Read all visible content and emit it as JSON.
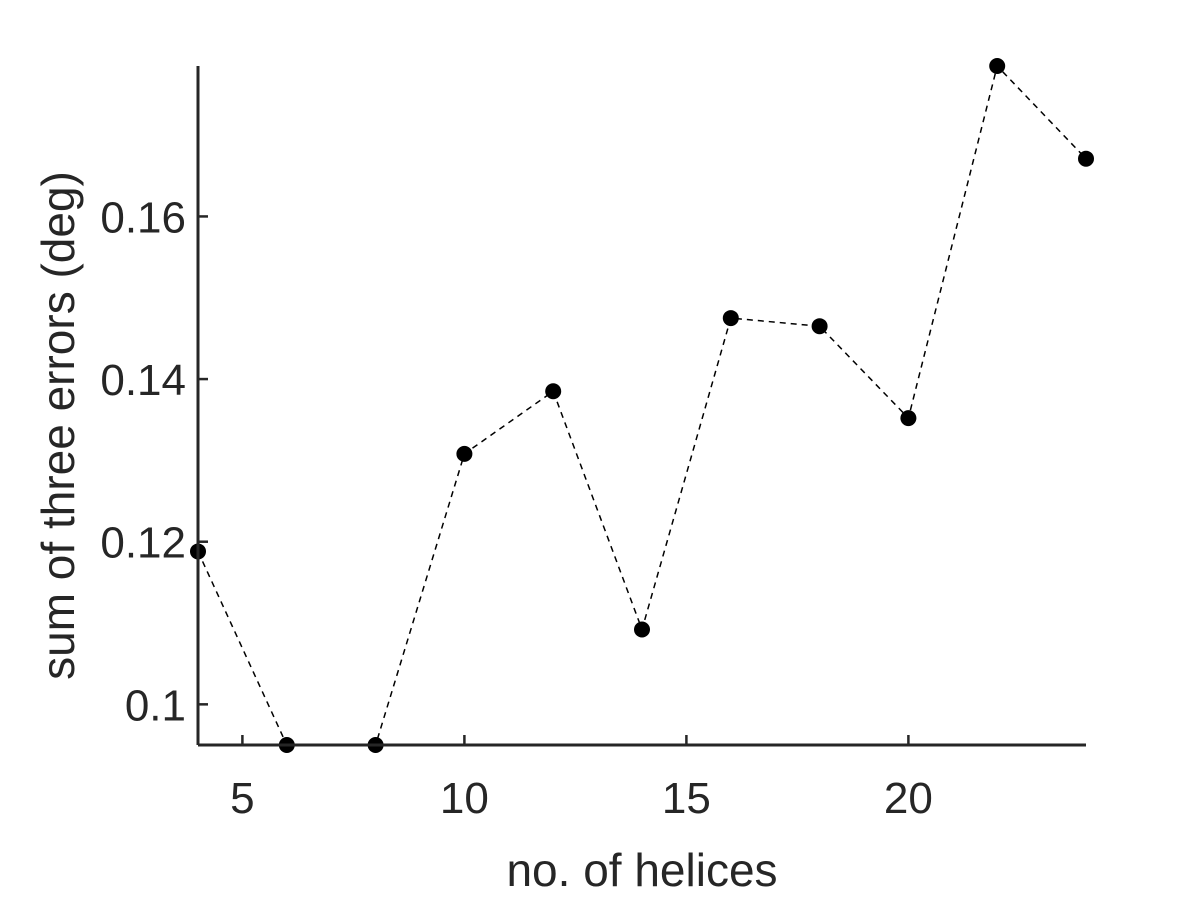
{
  "chart_data": {
    "type": "line",
    "title": "",
    "xlabel": "no. of helices",
    "ylabel": "sum of three errors (deg)",
    "xlim": [
      4,
      24
    ],
    "ylim": [
      0.095,
      0.1785
    ],
    "xticks": [
      5,
      10,
      15,
      20
    ],
    "xtick_labels": [
      "5",
      "10",
      "15",
      "20"
    ],
    "yticks": [
      0.1,
      0.12,
      0.14,
      0.16
    ],
    "ytick_labels": [
      "0.1",
      "0.12",
      "0.14",
      "0.16"
    ],
    "grid": false,
    "line_style": "dashed",
    "marker": "filled-circle",
    "colors": {
      "series": "#000000",
      "axis": "#262626"
    },
    "series": [
      {
        "x": [
          4,
          6,
          8,
          10,
          12,
          14,
          16,
          18,
          20,
          22,
          24
        ],
        "values": [
          0.1188,
          0.095,
          0.095,
          0.1308,
          0.1385,
          0.1092,
          0.1475,
          0.1465,
          0.1352,
          0.1785,
          0.1671
        ]
      }
    ]
  }
}
